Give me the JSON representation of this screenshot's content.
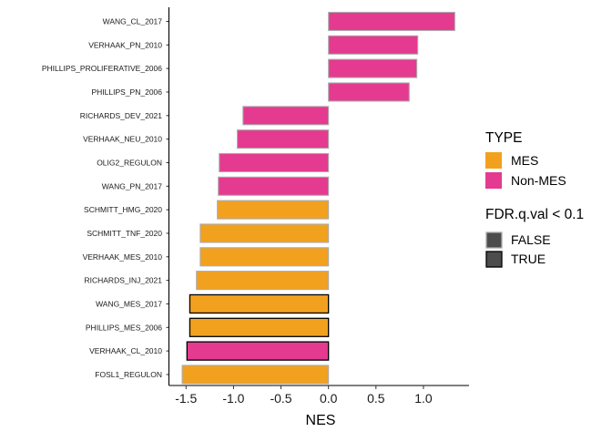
{
  "chart_data": {
    "type": "bar",
    "orientation": "horizontal",
    "categories": [
      "WANG_CL_2017",
      "VERHAAK_PN_2010",
      "PHILLIPS_PROLIFERATIVE_2006",
      "PHILLIPS_PN_2006",
      "RICHARDS_DEV_2021",
      "VERHAAK_NEU_2010",
      "OLIG2_REGULON",
      "WANG_PN_2017",
      "SCHMITT_HMG_2020",
      "SCHMITT_TNF_2020",
      "VERHAAK_MES_2010",
      "RICHARDS_INJ_2021",
      "WANG_MES_2017",
      "PHILLIPS_MES_2006",
      "VERHAAK_CL_2010",
      "FOSL1_REGULON"
    ],
    "values": [
      1.33,
      0.94,
      0.93,
      0.85,
      -0.9,
      -0.96,
      -1.15,
      -1.16,
      -1.17,
      -1.35,
      -1.35,
      -1.39,
      -1.46,
      -1.46,
      -1.49,
      -1.54
    ],
    "type_group": [
      "Non-MES",
      "Non-MES",
      "Non-MES",
      "Non-MES",
      "Non-MES",
      "Non-MES",
      "Non-MES",
      "Non-MES",
      "MES",
      "MES",
      "MES",
      "MES",
      "MES",
      "MES",
      "Non-MES",
      "MES"
    ],
    "fdr_significant": [
      false,
      false,
      false,
      false,
      false,
      false,
      false,
      false,
      false,
      false,
      false,
      false,
      true,
      true,
      true,
      false
    ],
    "xlabel": "NES",
    "ylabel": "",
    "xlim": [
      -1.68,
      1.48
    ],
    "xticks": [
      -1.5,
      -1.0,
      -0.5,
      0.0,
      0.5,
      1.0
    ],
    "xtick_labels": [
      "-1.5",
      "-1.0",
      "-0.5",
      "0.0",
      "0.5",
      "1.0"
    ],
    "grid": false,
    "legend_position": "right",
    "legends": [
      {
        "title": "TYPE",
        "items": [
          {
            "label": "MES",
            "color": "#F2A11F"
          },
          {
            "label": "Non-MES",
            "color": "#E43A8F"
          }
        ]
      },
      {
        "title": "FDR.q.val < 0.1",
        "items": [
          {
            "label": "FALSE",
            "outline": "#ABABAB"
          },
          {
            "label": "TRUE",
            "outline": "#000000"
          }
        ]
      }
    ],
    "colors": {
      "MES": "#F2A11F",
      "Non-MES": "#E43A8F",
      "outline_false": "#ABABAB",
      "outline_true": "#000000",
      "legend_key_fill": "#4D4D4D"
    }
  }
}
